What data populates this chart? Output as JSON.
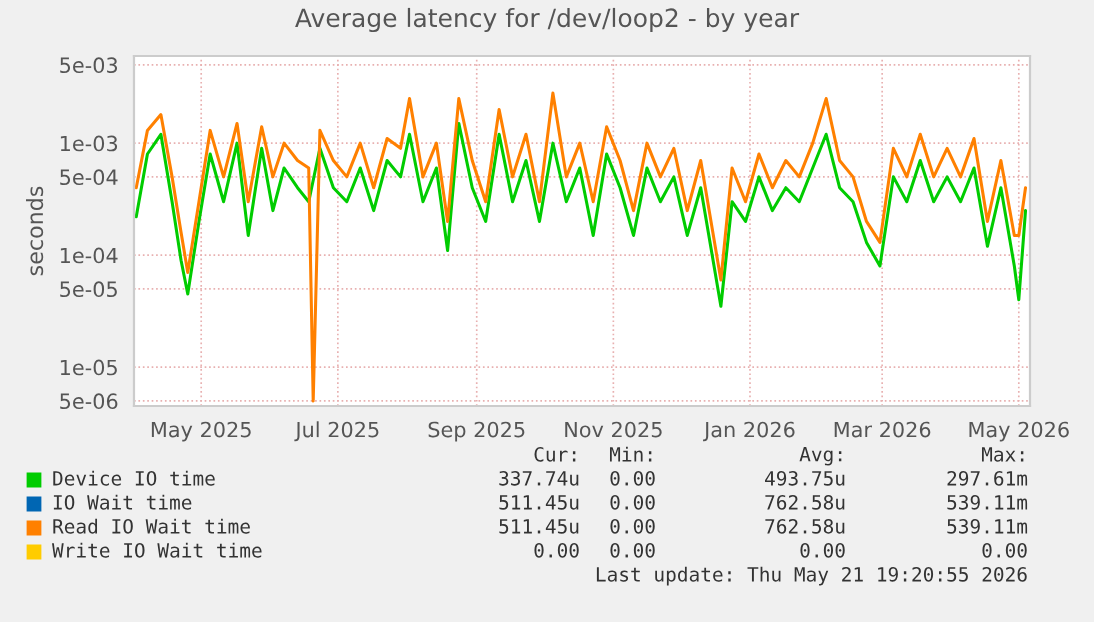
{
  "chart_data": {
    "type": "line",
    "title": "Average latency for /dev/loop2 - by year",
    "ylabel": "seconds",
    "log": "y",
    "x": [
      "2025-04-17",
      "2025-04-22",
      "2025-04-28",
      "2025-05-03",
      "2025-05-07",
      "2025-05-10",
      "2025-05-15",
      "2025-05-20",
      "2025-05-26",
      "2025-06-01",
      "2025-06-06",
      "2025-06-12",
      "2025-06-17",
      "2025-06-22",
      "2025-06-28",
      "2025-07-03",
      "2025-07-05",
      "2025-07-08",
      "2025-07-14",
      "2025-07-20",
      "2025-07-26",
      "2025-08-01",
      "2025-08-07",
      "2025-08-13",
      "2025-08-17",
      "2025-08-23",
      "2025-08-29",
      "2025-09-03",
      "2025-09-08",
      "2025-09-14",
      "2025-09-20",
      "2025-09-26",
      "2025-10-02",
      "2025-10-08",
      "2025-10-14",
      "2025-10-20",
      "2025-10-26",
      "2025-11-01",
      "2025-11-07",
      "2025-11-13",
      "2025-11-19",
      "2025-11-25",
      "2025-12-01",
      "2025-12-07",
      "2025-12-13",
      "2025-12-19",
      "2025-12-25",
      "2026-01-03",
      "2026-01-08",
      "2026-01-14",
      "2026-01-20",
      "2026-01-26",
      "2026-02-01",
      "2026-02-07",
      "2026-02-13",
      "2026-02-19",
      "2026-02-25",
      "2026-03-03",
      "2026-03-09",
      "2026-03-15",
      "2026-03-21",
      "2026-03-27",
      "2026-04-02",
      "2026-04-08",
      "2026-04-14",
      "2026-04-20",
      "2026-04-26",
      "2026-05-02",
      "2026-05-08",
      "2026-05-14",
      "2026-05-16",
      "2026-05-19"
    ],
    "series": [
      {
        "name": "Device IO time",
        "color": "#00cc00",
        "values": [
          0.00022,
          0.0008,
          0.0012,
          0.0003,
          9e-05,
          4.5e-05,
          0.0002,
          0.0008,
          0.0003,
          0.001,
          0.00015,
          0.0009,
          0.00025,
          0.0006,
          0.0004,
          0.0003,
          null,
          0.0009,
          0.0004,
          0.0003,
          0.0006,
          0.00025,
          0.0007,
          0.0005,
          0.0012,
          0.0003,
          0.0006,
          0.00011,
          0.0015,
          0.0004,
          0.0002,
          0.0012,
          0.0003,
          0.0007,
          0.0002,
          0.001,
          0.0003,
          0.0006,
          0.00015,
          0.0008,
          0.0004,
          0.00015,
          0.0006,
          0.0003,
          0.0005,
          0.00015,
          0.0004,
          3.5e-05,
          0.0003,
          0.0002,
          0.0005,
          0.00025,
          0.0004,
          0.0003,
          0.0006,
          0.0012,
          0.0004,
          0.0003,
          0.00013,
          8e-05,
          0.0005,
          0.0003,
          0.0007,
          0.0003,
          0.0005,
          0.0003,
          0.0006,
          0.00012,
          0.0004,
          8e-05,
          4e-05,
          0.00025
        ]
      },
      {
        "name": "IO Wait time",
        "color": "#0066b3",
        "values": [
          null,
          null,
          null,
          null,
          null,
          null,
          null,
          null,
          null,
          null,
          null,
          null,
          null,
          null,
          null,
          null,
          null,
          null,
          null,
          null,
          null,
          null,
          null,
          null,
          null,
          null,
          null,
          null,
          null,
          null,
          null,
          null,
          null,
          null,
          null,
          null,
          null,
          null,
          null,
          null,
          null,
          null,
          null,
          null,
          null,
          null,
          null,
          null,
          null,
          null,
          null,
          null,
          null,
          null,
          null,
          null,
          null,
          null,
          null,
          null,
          null,
          null,
          null,
          null,
          null,
          null,
          null,
          null,
          null,
          null,
          null,
          null
        ]
      },
      {
        "name": "Read IO Wait time",
        "color": "#ff8000",
        "values": [
          0.0004,
          0.0013,
          0.0018,
          0.0005,
          0.00016,
          7e-05,
          0.0003,
          0.0013,
          0.0005,
          0.0015,
          0.0003,
          0.0014,
          0.0005,
          0.001,
          0.0007,
          0.0006,
          5e-06,
          0.0013,
          0.0007,
          0.0005,
          0.001,
          0.0004,
          0.0011,
          0.0009,
          0.0025,
          0.0005,
          0.001,
          0.0002,
          0.0025,
          0.0007,
          0.0003,
          0.002,
          0.0005,
          0.0012,
          0.0003,
          0.0028,
          0.0005,
          0.001,
          0.0003,
          0.0014,
          0.0007,
          0.00025,
          0.001,
          0.0005,
          0.0009,
          0.00025,
          0.0007,
          6e-05,
          0.0006,
          0.0003,
          0.0008,
          0.0004,
          0.0007,
          0.0005,
          0.001,
          0.0025,
          0.0007,
          0.0005,
          0.0002,
          0.00013,
          0.0009,
          0.0005,
          0.0012,
          0.0005,
          0.0009,
          0.0005,
          0.0011,
          0.0002,
          0.0007,
          0.00015,
          0.00015,
          0.0004
        ]
      },
      {
        "name": "Write IO Wait time",
        "color": "#ffcc00",
        "values": [
          null,
          null,
          null,
          null,
          null,
          null,
          null,
          null,
          null,
          null,
          null,
          null,
          null,
          null,
          null,
          null,
          null,
          null,
          null,
          null,
          null,
          null,
          null,
          null,
          null,
          null,
          null,
          null,
          null,
          null,
          null,
          null,
          null,
          null,
          null,
          null,
          null,
          null,
          null,
          null,
          null,
          null,
          null,
          null,
          null,
          null,
          null,
          null,
          null,
          null,
          null,
          null,
          null,
          null,
          null,
          null,
          null,
          null,
          null,
          null,
          null,
          null,
          null,
          null,
          null,
          null,
          null,
          null,
          null,
          null,
          null,
          null
        ]
      }
    ],
    "xlim": [
      "2025-04-16",
      "2026-05-21"
    ],
    "xticks": [
      {
        "value": "2025-05-16",
        "label": "May 2025"
      },
      {
        "value": "2025-07-16",
        "label": "Jul 2025"
      },
      {
        "value": "2025-09-16",
        "label": "Sep 2025"
      },
      {
        "value": "2025-11-16",
        "label": "Nov 2025"
      },
      {
        "value": "2026-01-16",
        "label": "Jan 2026"
      },
      {
        "value": "2026-03-16",
        "label": "Mar 2026"
      },
      {
        "value": "2026-05-16",
        "label": "May 2026"
      }
    ],
    "ylim": [
      4.5e-06,
      0.006
    ],
    "yticks": [
      {
        "value": 5e-06,
        "label": "5e-06"
      },
      {
        "value": 1e-05,
        "label": "1e-05"
      },
      {
        "value": 5e-05,
        "label": "5e-05"
      },
      {
        "value": 0.0001,
        "label": "1e-04"
      },
      {
        "value": 0.0005,
        "label": "5e-04"
      },
      {
        "value": 0.001,
        "label": "1e-03"
      },
      {
        "value": 0.005,
        "label": "5e-03"
      }
    ],
    "grid": true,
    "legend": "bottom",
    "annotations": [
      "Cur:",
      "Min:",
      "Avg:",
      "Max:",
      "337.74u",
      "0.00",
      "493.75u",
      "297.61m",
      "511.45u",
      "0.00",
      "762.58u",
      "539.11m",
      "511.45u",
      "0.00",
      "762.58u",
      "539.11m",
      "0.00",
      "0.00",
      "0.00",
      "0.00",
      "Last update: Thu May 21 19:20:55 2026"
    ]
  }
}
